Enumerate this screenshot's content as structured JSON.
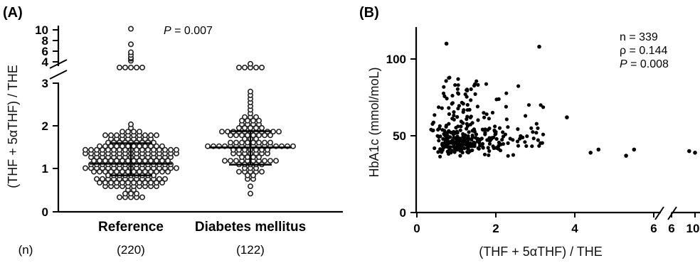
{
  "chart_data": [
    {
      "panel": "(A)",
      "type": "scatter",
      "subtype": "dot-plot",
      "ylabel": "(THF + 5αTHF) / THE",
      "y_axis_broken": true,
      "ylim_lower": [
        0,
        3
      ],
      "ylim_upper": [
        3.5,
        10.5
      ],
      "yticks_lower": [
        "0",
        "1",
        "2",
        "3"
      ],
      "yticks_upper": [
        "4",
        "6",
        "8",
        "10"
      ],
      "categories": [
        "Reference",
        "Diabetes mellitus"
      ],
      "n_label": "(n)",
      "n_values": [
        "(220)",
        "(122)"
      ],
      "annotation_p_italic": "P",
      "annotation_p_value": " = 0.007",
      "series": [
        {
          "category": "Reference",
          "n": 220,
          "mean": 1.12,
          "sd_lower": 0.85,
          "sd_upper": 1.6,
          "high_values": [
            3.4,
            3.4,
            3.4,
            3.4,
            3.4,
            4.2,
            4.6,
            4.8,
            5.3,
            5.8,
            7.3,
            10.2
          ]
        },
        {
          "category": "Diabetes mellitus",
          "n": 122,
          "mean": 1.5,
          "sd_lower": 1.1,
          "sd_upper": 1.88,
          "high_values": [
            3.4,
            3.4,
            3.4,
            3.4,
            3.4,
            3.8
          ]
        }
      ]
    },
    {
      "panel": "(B)",
      "type": "scatter",
      "xlabel": "(THF + 5αTHF) / THE",
      "ylabel": "HbA1c (mmol/moL)",
      "x_axis_broken": true,
      "xlim_main": [
        0,
        6
      ],
      "xlim_extra": [
        6,
        10
      ],
      "xticks_main": [
        "0",
        "2",
        "4",
        "6"
      ],
      "xticks_extra": [
        "6",
        "10"
      ],
      "ylim": [
        0,
        120
      ],
      "yticks": [
        "0",
        "50",
        "100"
      ],
      "annotation_n": "n = 339",
      "annotation_rho": "ρ = 0.144",
      "annotation_p_italic": "P",
      "annotation_p_value": " = 0.008",
      "notable_points": [
        {
          "x": 0.75,
          "y": 110
        },
        {
          "x": 3.1,
          "y": 108
        },
        {
          "x": 3.8,
          "y": 62
        },
        {
          "x": 4.4,
          "y": 39
        },
        {
          "x": 4.6,
          "y": 41
        },
        {
          "x": 5.3,
          "y": 37
        },
        {
          "x": 5.5,
          "y": 41
        },
        {
          "x": 9.0,
          "y": 40
        },
        {
          "x": 10.0,
          "y": 39
        }
      ]
    }
  ]
}
